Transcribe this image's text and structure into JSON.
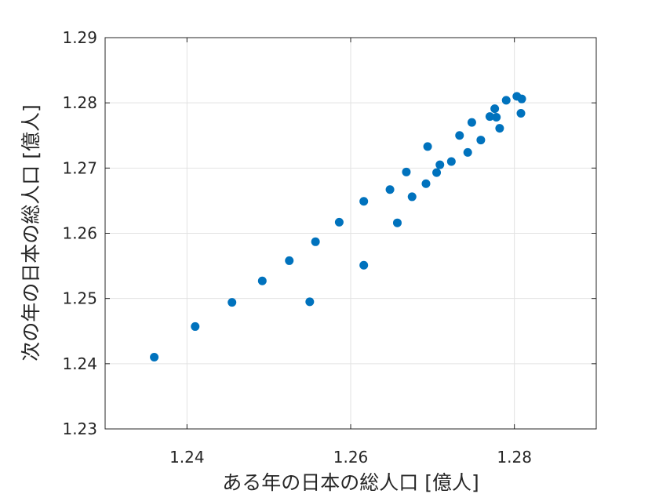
{
  "chart_data": {
    "type": "scatter",
    "title": "",
    "xlabel": "ある年の日本の総人口 [億人]",
    "ylabel": "次の年の日本の総人口 [億人]",
    "xlim": [
      1.23,
      1.29
    ],
    "ylim": [
      1.23,
      1.29
    ],
    "xticks": [
      "1.24",
      "1.26",
      "1.28"
    ],
    "yticks": [
      "1.23",
      "1.24",
      "1.25",
      "1.26",
      "1.27",
      "1.28",
      "1.29"
    ],
    "grid": true,
    "marker_color": "#0072BD",
    "series": [
      {
        "x": [
          1.236,
          1.241,
          1.2455,
          1.2492,
          1.2525,
          1.255,
          1.2557,
          1.2586,
          1.2616,
          1.2616,
          1.2648,
          1.2657,
          1.2668,
          1.2675,
          1.2692,
          1.2694,
          1.2705,
          1.2709,
          1.2723,
          1.2733,
          1.2743,
          1.2748,
          1.2759,
          1.277,
          1.2776,
          1.2778,
          1.2782,
          1.279,
          1.2803,
          1.2808,
          1.2809
        ],
        "y": [
          1.241,
          1.2457,
          1.2494,
          1.2527,
          1.2558,
          1.2495,
          1.2587,
          1.2617,
          1.2551,
          1.2649,
          1.2667,
          1.2616,
          1.2694,
          1.2656,
          1.2676,
          1.2733,
          1.2693,
          1.2705,
          1.271,
          1.275,
          1.2724,
          1.277,
          1.2743,
          1.2779,
          1.2791,
          1.2778,
          1.2761,
          1.2804,
          1.281,
          1.2784,
          1.2806
        ]
      }
    ]
  }
}
